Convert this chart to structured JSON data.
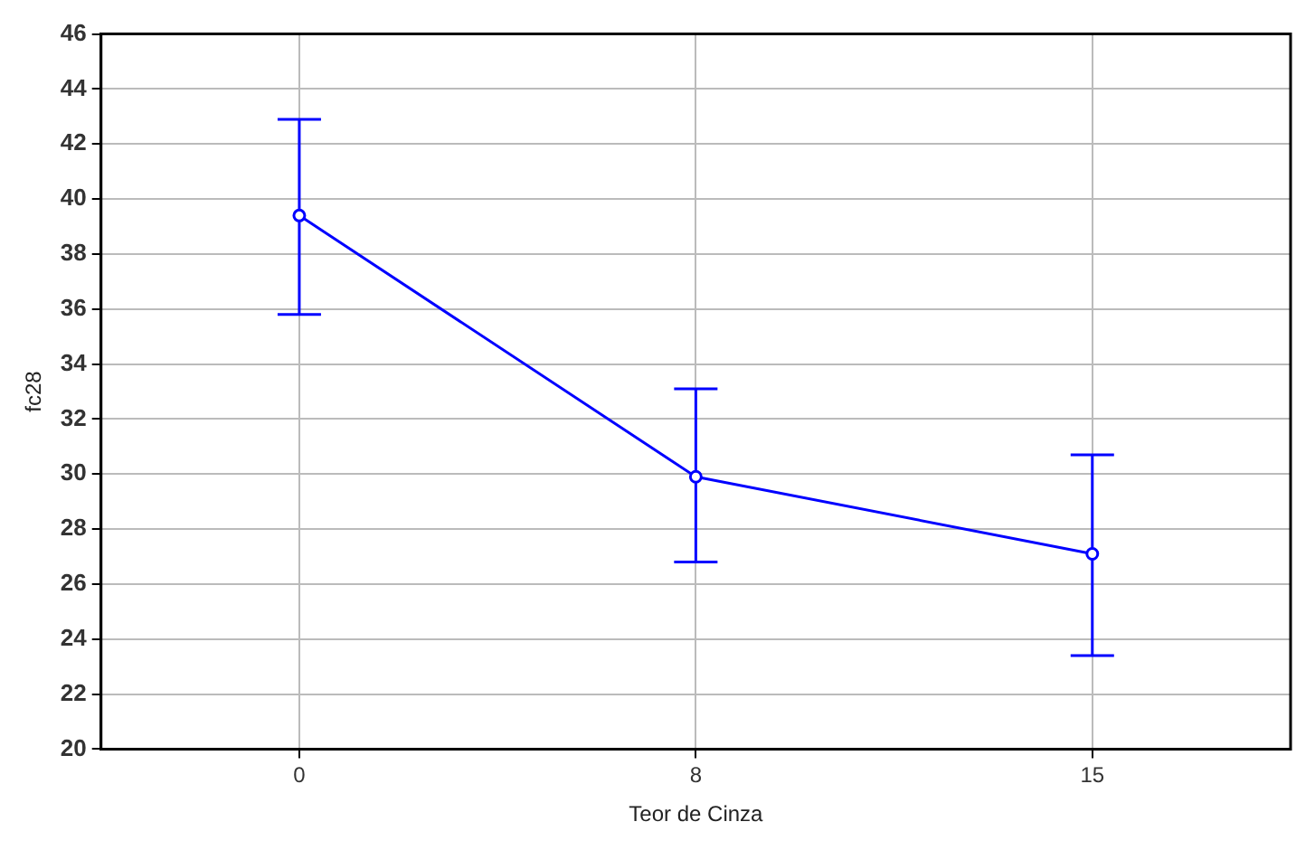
{
  "chart_data": {
    "type": "line",
    "xlabel": "Teor de Cinza",
    "ylabel": "fc28",
    "categories": [
      "0",
      "8",
      "15"
    ],
    "series": [
      {
        "color": "#0000ff",
        "values": [
          39.4,
          29.9,
          27.1
        ],
        "errors": [
          [
            35.8,
            42.9
          ],
          [
            26.8,
            33.1
          ],
          [
            23.4,
            30.7
          ]
        ]
      }
    ],
    "ylim": [
      20,
      46
    ],
    "yticks": [
      20,
      22,
      24,
      26,
      28,
      30,
      32,
      34,
      36,
      38,
      40,
      42,
      44,
      46
    ],
    "grid": true,
    "legend": false,
    "marker": "circle",
    "line_style": "solid"
  }
}
